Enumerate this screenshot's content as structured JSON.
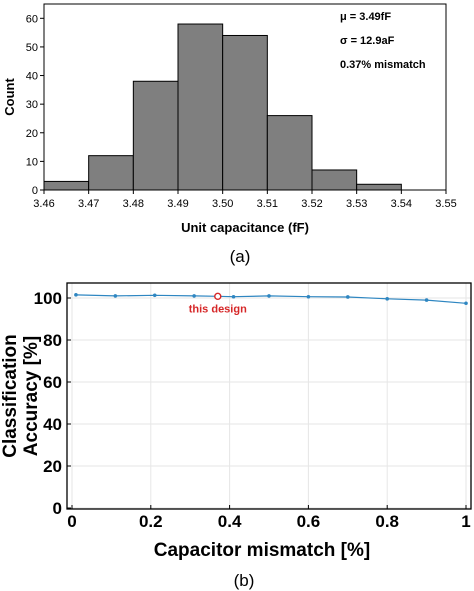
{
  "chart_data": [
    {
      "type": "bar",
      "panel_label": "(a)",
      "bins": [
        {
          "from": 3.46,
          "to": 3.47,
          "count": 3
        },
        {
          "from": 3.47,
          "to": 3.48,
          "count": 12
        },
        {
          "from": 3.48,
          "to": 3.49,
          "count": 38
        },
        {
          "from": 3.49,
          "to": 3.5,
          "count": 58
        },
        {
          "from": 3.5,
          "to": 3.51,
          "count": 54
        },
        {
          "from": 3.51,
          "to": 3.52,
          "count": 26
        },
        {
          "from": 3.52,
          "to": 3.53,
          "count": 7
        },
        {
          "from": 3.53,
          "to": 3.54,
          "count": 2
        }
      ],
      "xlabel": "Unit capacitance (fF)",
      "ylabel": "Count",
      "xlim": [
        3.46,
        3.55
      ],
      "ylim": [
        0,
        65
      ],
      "xticks": [
        "3.46",
        "3.47",
        "3.48",
        "3.49",
        "3.50",
        "3.51",
        "3.52",
        "3.53",
        "3.54",
        "3.55"
      ],
      "yticks": [
        "0",
        "10",
        "20",
        "30",
        "40",
        "50",
        "60"
      ],
      "annotations": [
        "μ = 3.49fF",
        "σ = 12.9aF",
        "0.37% mismatch"
      ],
      "colors": {
        "bar": "#7f7f7f"
      }
    },
    {
      "type": "line",
      "panel_label": "(b)",
      "x": [
        0.01,
        0.11,
        0.21,
        0.31,
        0.37,
        0.41,
        0.5,
        0.6,
        0.7,
        0.8,
        0.9,
        1.0
      ],
      "y": [
        101.5,
        101.0,
        101.3,
        101.0,
        100.8,
        100.6,
        101.0,
        100.6,
        100.5,
        99.6,
        99.0,
        97.5
      ],
      "highlight": {
        "x": 0.37,
        "y": 100.8,
        "label": "this design"
      },
      "xlabel": "Capacitor mismatch [%]",
      "ylabel_lines": [
        "Classification",
        "Accuracy [%]"
      ],
      "xlim": [
        0,
        1
      ],
      "ylim": [
        0,
        105
      ],
      "xticks": [
        "0",
        "0.2",
        "0.4",
        "0.6",
        "0.8",
        "1"
      ],
      "yticks": [
        "0",
        "20",
        "40",
        "60",
        "80",
        "100"
      ],
      "grid": true,
      "colors": {
        "line": "#2e86c1",
        "highlight": "#d62728"
      }
    }
  ]
}
